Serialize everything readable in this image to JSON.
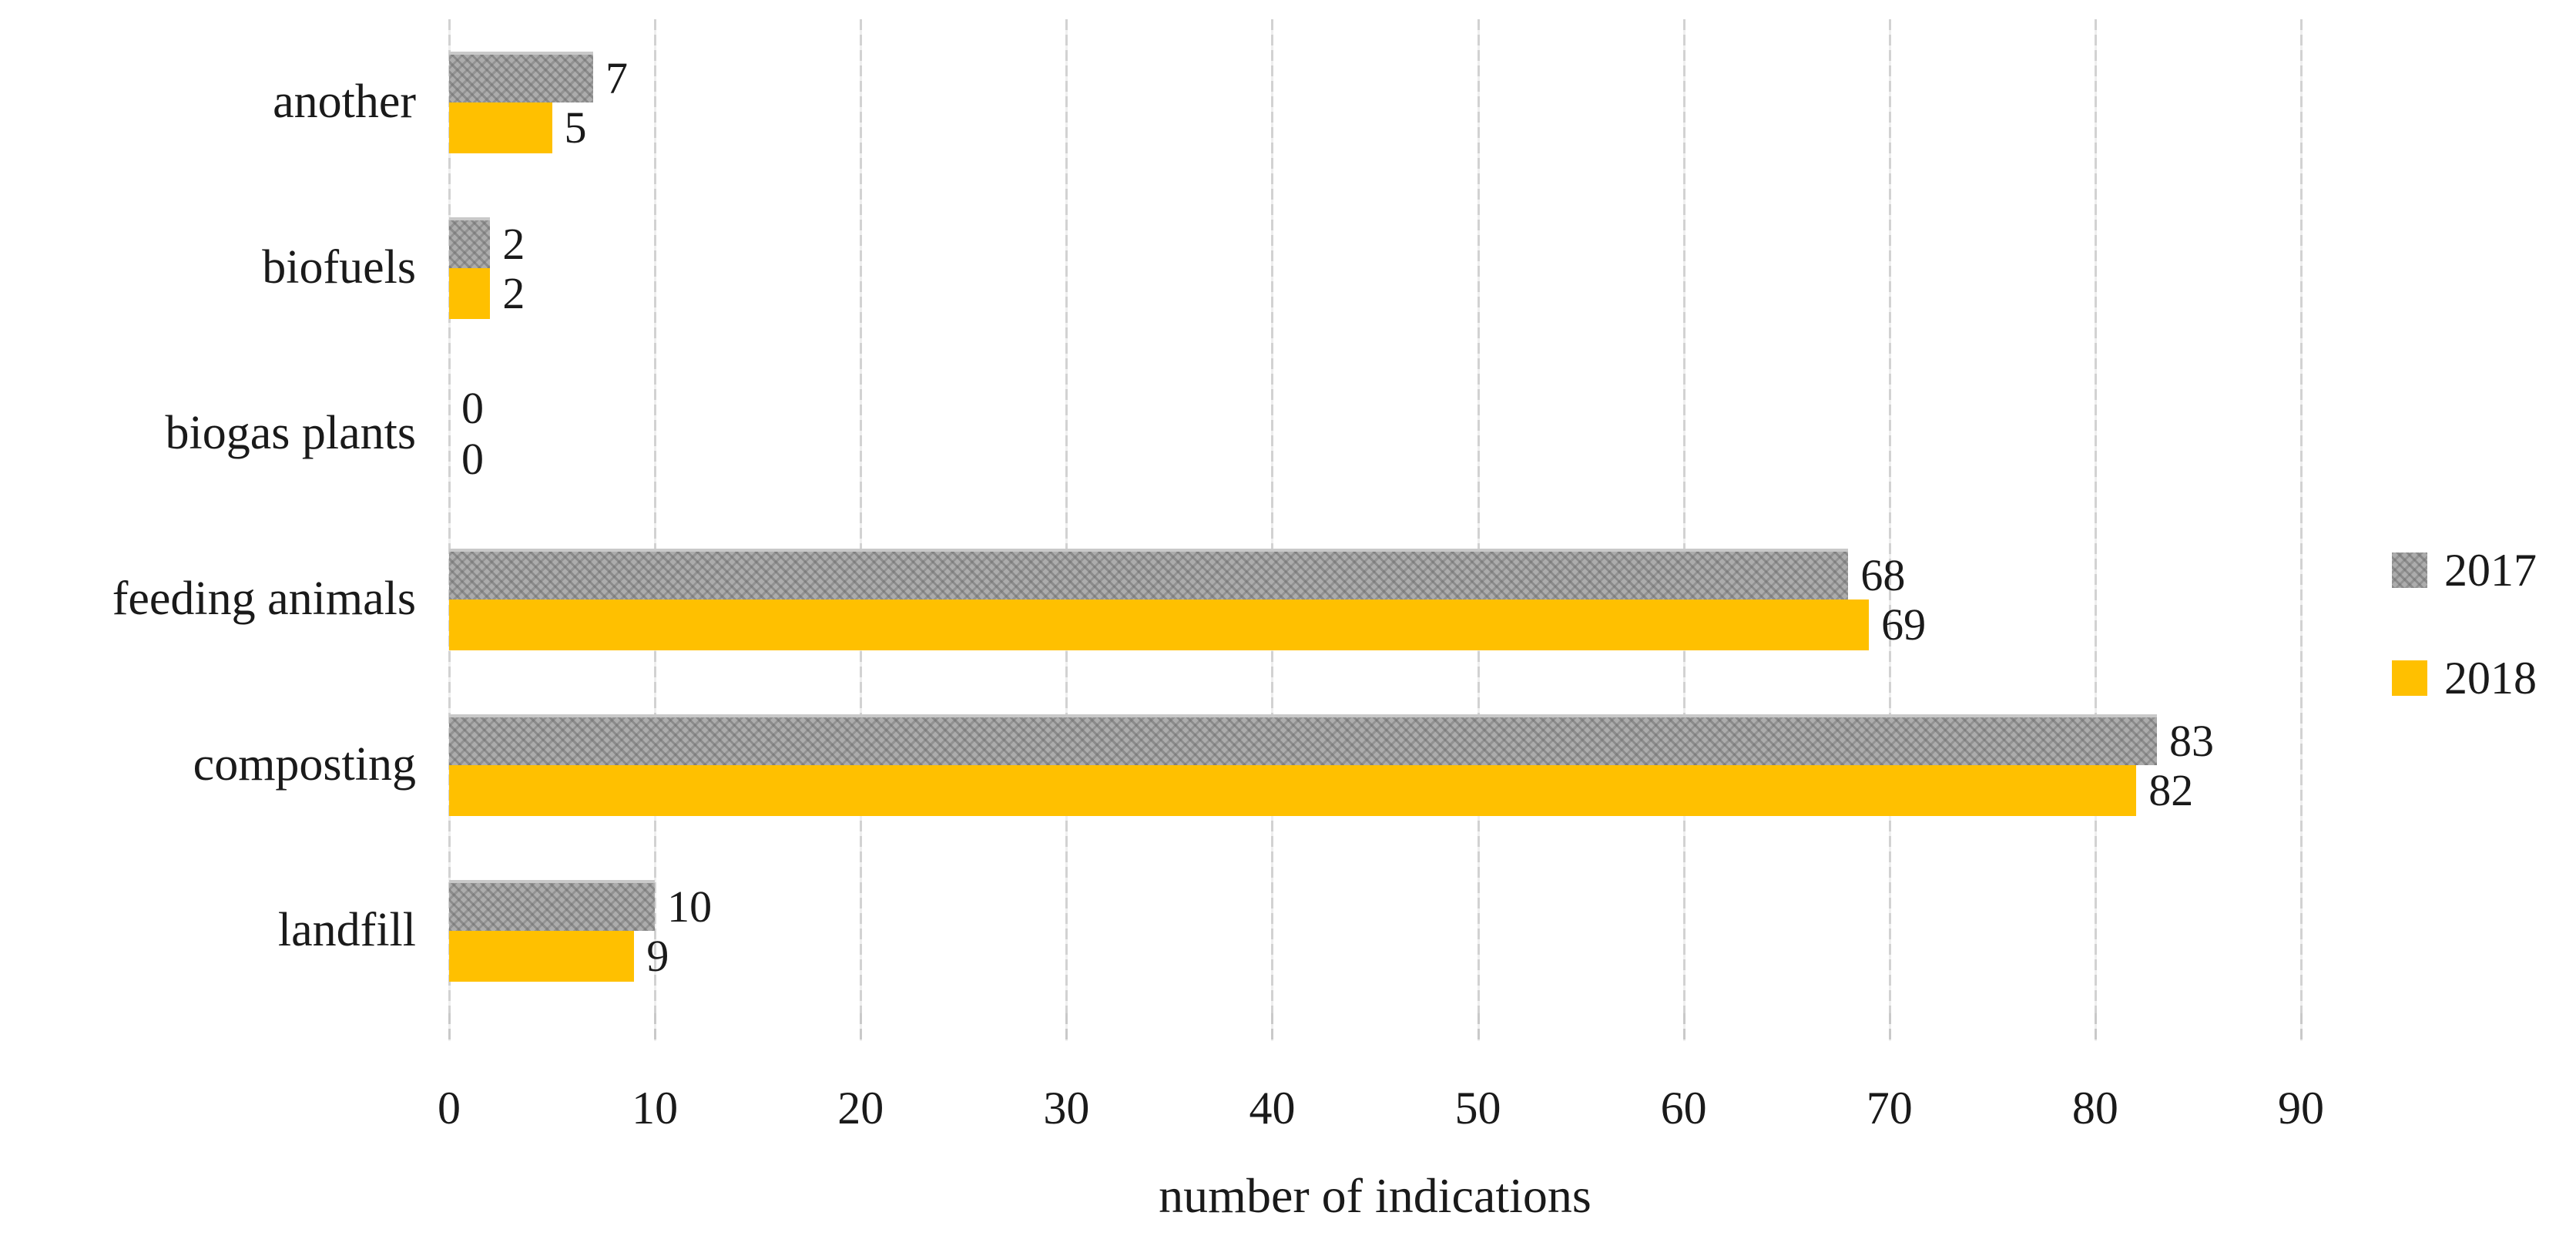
{
  "chart_data": {
    "type": "bar",
    "orientation": "horizontal",
    "title": "",
    "xlabel": "number of indications",
    "ylabel": "",
    "xlim": [
      0,
      90
    ],
    "xticks": [
      0,
      10,
      20,
      30,
      40,
      50,
      60,
      70,
      80,
      90
    ],
    "grid": true,
    "legend_position": "right",
    "value_labels": "outside-end",
    "categories": [
      "another",
      "biofuels",
      "biogas plants",
      "feeding animals",
      "composting",
      "landfill"
    ],
    "series": [
      {
        "name": "2017",
        "color": "#ACACAC",
        "fill": "pattern-weave",
        "values": [
          7,
          2,
          0,
          68,
          83,
          10
        ]
      },
      {
        "name": "2018",
        "color": "#FFC000",
        "fill": "solid",
        "values": [
          5,
          2,
          0,
          69,
          82,
          9
        ]
      }
    ]
  },
  "colors": {
    "background": "#FFFFFF",
    "gridline": "#D2D2D2",
    "text": "#1A1A1A",
    "series_2017": "#ACACAC",
    "series_2018": "#FFC000"
  }
}
